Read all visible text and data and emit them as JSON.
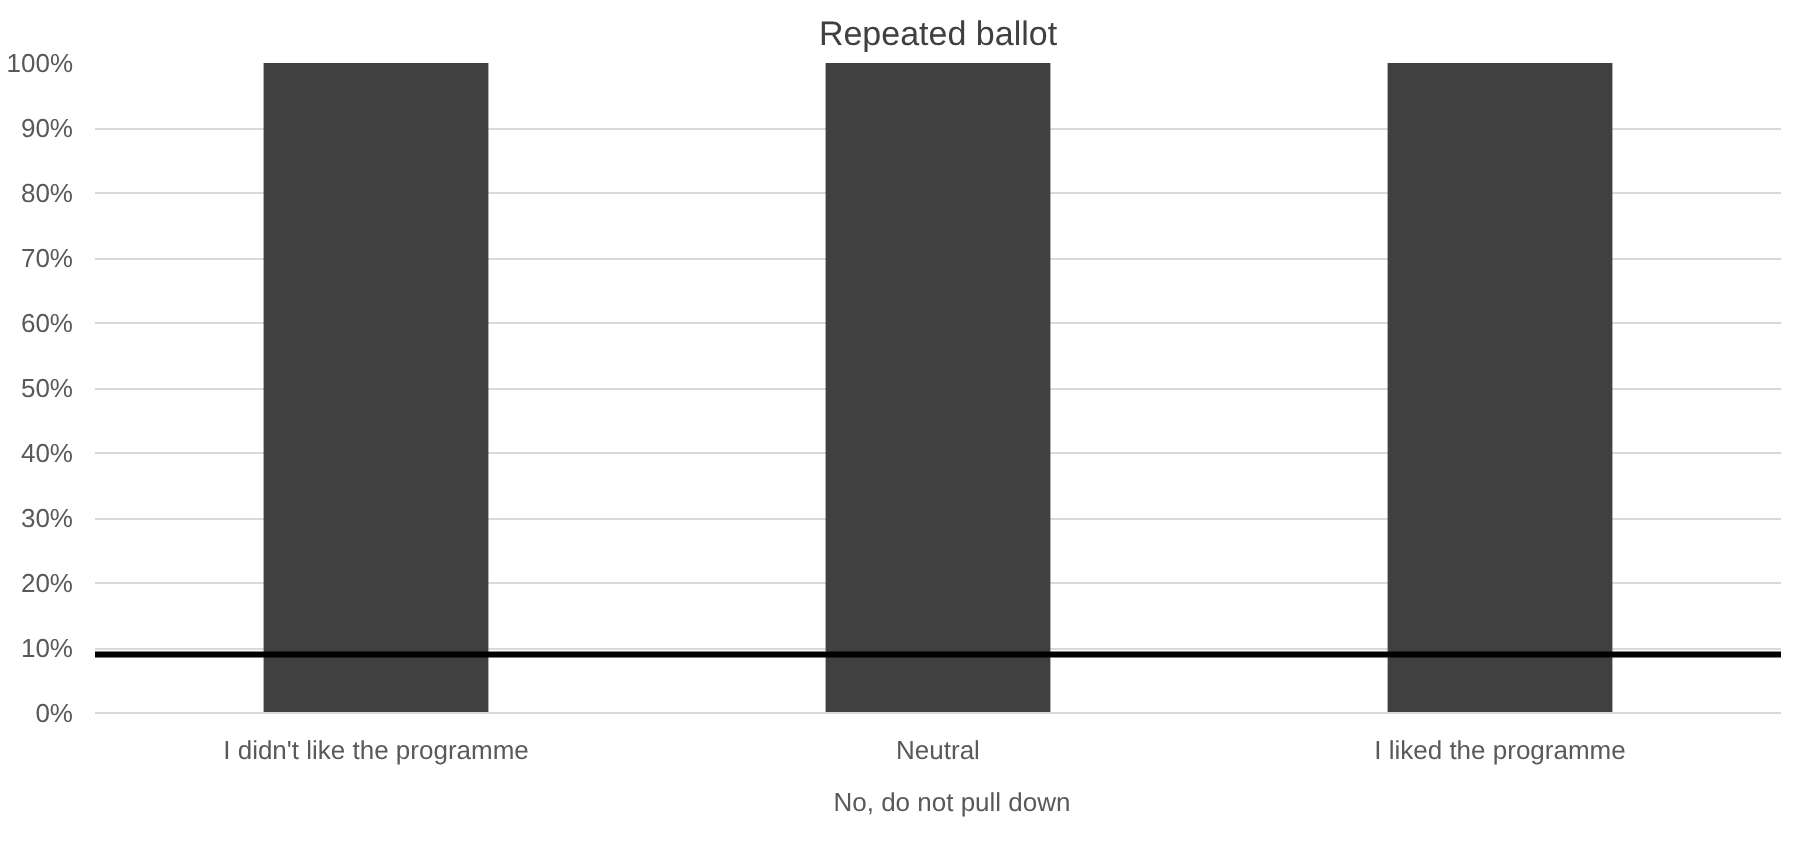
{
  "chart_data": {
    "type": "bar",
    "title": "Repeated ballot",
    "categories": [
      "I didn't like the programme",
      "Neutral",
      "I liked the programme"
    ],
    "series": [
      {
        "name": "No, do not pull down",
        "color": "#404040",
        "values": [
          100,
          100,
          100
        ]
      }
    ],
    "ylim": [
      0,
      100
    ],
    "yticks": [
      {
        "value": 0,
        "label": "0%"
      },
      {
        "value": 10,
        "label": "10%"
      },
      {
        "value": 20,
        "label": "20%"
      },
      {
        "value": 30,
        "label": "30%"
      },
      {
        "value": 40,
        "label": "40%"
      },
      {
        "value": 50,
        "label": "50%"
      },
      {
        "value": 60,
        "label": "60%"
      },
      {
        "value": 70,
        "label": "70%"
      },
      {
        "value": 80,
        "label": "80%"
      },
      {
        "value": 90,
        "label": "90%"
      },
      {
        "value": 100,
        "label": "100%"
      }
    ],
    "ref_lines": [
      {
        "axis": "y",
        "value": 9,
        "color": "#000000"
      }
    ],
    "grid": "y",
    "legend": "bottom"
  }
}
